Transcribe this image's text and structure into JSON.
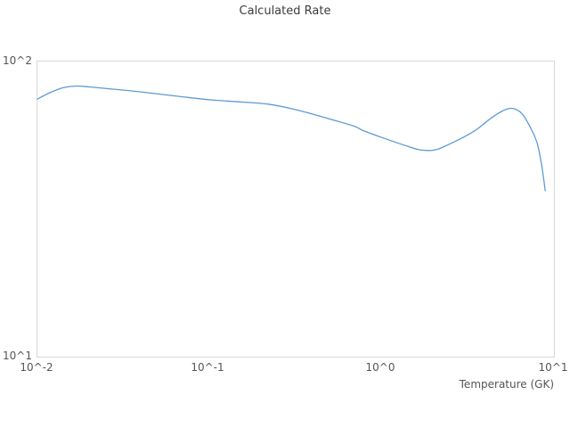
{
  "colors": {
    "line": "#5b9bd5",
    "frame": "#d8d8d8",
    "tick_text": "#555555",
    "title_text": "#3c3c3c",
    "background": "#ffffff"
  },
  "chart_data": {
    "type": "line",
    "title": "Calculated Rate",
    "xlabel": "Temperature (GK)",
    "ylabel": "",
    "x_scale": "log",
    "y_scale": "log",
    "xlim": [
      0.01,
      10
    ],
    "ylim": [
      10,
      100
    ],
    "grid": false,
    "legend": "none",
    "x_ticks": [
      {
        "text": "10^-2",
        "value": 0.01
      },
      {
        "text": "10^-1",
        "value": 0.1
      },
      {
        "text": "10^0",
        "value": 1
      },
      {
        "text": "10^1",
        "value": 10
      }
    ],
    "y_ticks": [
      {
        "text": "10^1",
        "value": 10
      },
      {
        "text": "10^2",
        "value": 100
      }
    ],
    "series": [
      {
        "name": "calculated_rate",
        "color": "#5b9bd5",
        "points": [
          [
            0.01,
            74.6
          ],
          [
            0.0118,
            78.4
          ],
          [
            0.0141,
            81.5
          ],
          [
            0.0169,
            82.6
          ],
          [
            0.0202,
            82.0
          ],
          [
            0.0289,
            80.4
          ],
          [
            0.0413,
            78.7
          ],
          [
            0.0664,
            76.2
          ],
          [
            0.1,
            74.2
          ],
          [
            0.153,
            72.9
          ],
          [
            0.219,
            71.7
          ],
          [
            0.313,
            68.8
          ],
          [
            0.448,
            65.0
          ],
          [
            0.679,
            60.6
          ],
          [
            0.773,
            58.5
          ],
          [
            1.0,
            55.3
          ],
          [
            1.4,
            51.7
          ],
          [
            1.67,
            50.2
          ],
          [
            2.0,
            50.1
          ],
          [
            2.37,
            51.9
          ],
          [
            3.39,
            57.8
          ],
          [
            4.3,
            64.2
          ],
          [
            5.15,
            68.5
          ],
          [
            5.8,
            69.3
          ],
          [
            6.53,
            66.5
          ],
          [
            7.36,
            59.2
          ],
          [
            8.0,
            52.7
          ],
          [
            8.49,
            44.3
          ],
          [
            8.9,
            36.5
          ]
        ]
      }
    ]
  }
}
